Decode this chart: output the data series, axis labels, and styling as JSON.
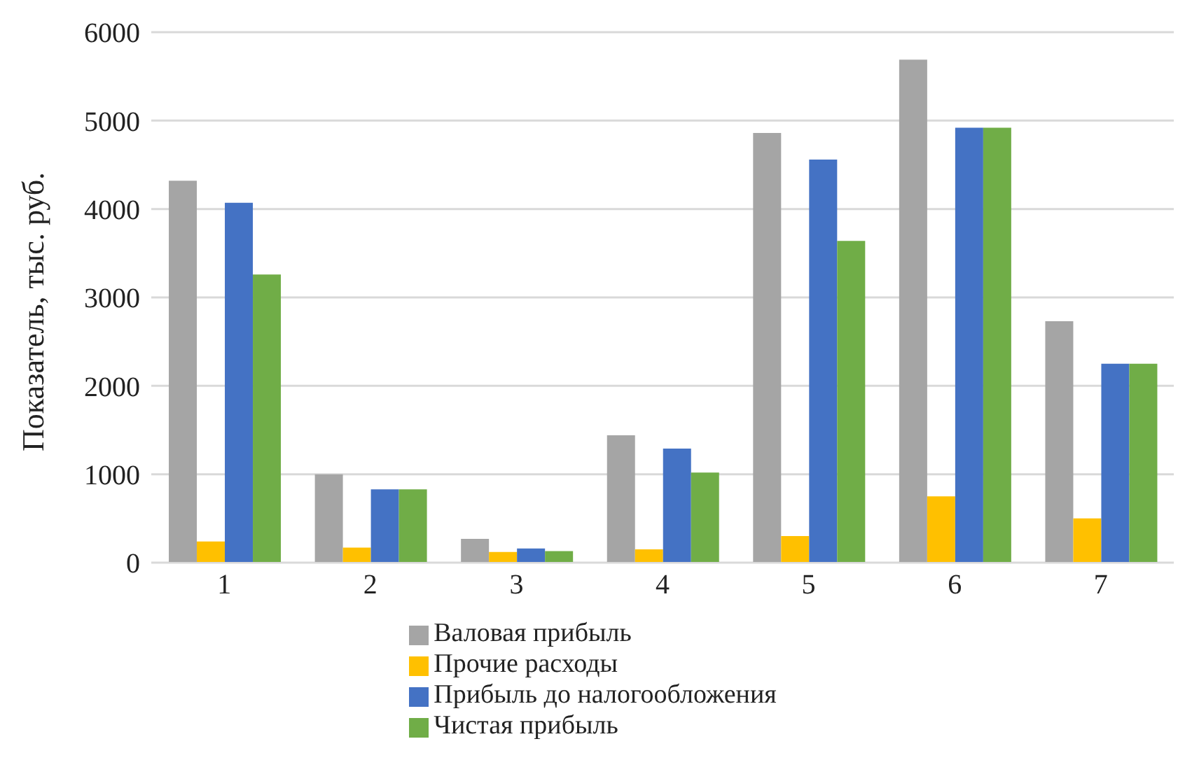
{
  "chart_data": {
    "type": "bar",
    "ylabel": "Показатель, тыс. руб.",
    "categories": [
      "1",
      "2",
      "3",
      "4",
      "5",
      "6",
      "7"
    ],
    "series": [
      {
        "name": "Валовая прибыль",
        "color": "#a5a5a5",
        "values": [
          4320,
          1000,
          270,
          1440,
          4860,
          5690,
          2730
        ]
      },
      {
        "name": "Прочие расходы",
        "color": "#ffc000",
        "values": [
          240,
          170,
          120,
          150,
          300,
          750,
          500
        ]
      },
      {
        "name": "Прибыль до налогообложения",
        "color": "#4472c4",
        "values": [
          4070,
          830,
          160,
          1290,
          4560,
          4920,
          2250
        ]
      },
      {
        "name": "Чистая прибыль",
        "color": "#70ad47",
        "values": [
          3260,
          830,
          130,
          1020,
          3640,
          4920,
          2250
        ]
      }
    ],
    "ylim": [
      0,
      6000
    ],
    "yticks": [
      0,
      1000,
      2000,
      3000,
      4000,
      5000,
      6000
    ],
    "grid": "y",
    "legend": "bottom"
  }
}
